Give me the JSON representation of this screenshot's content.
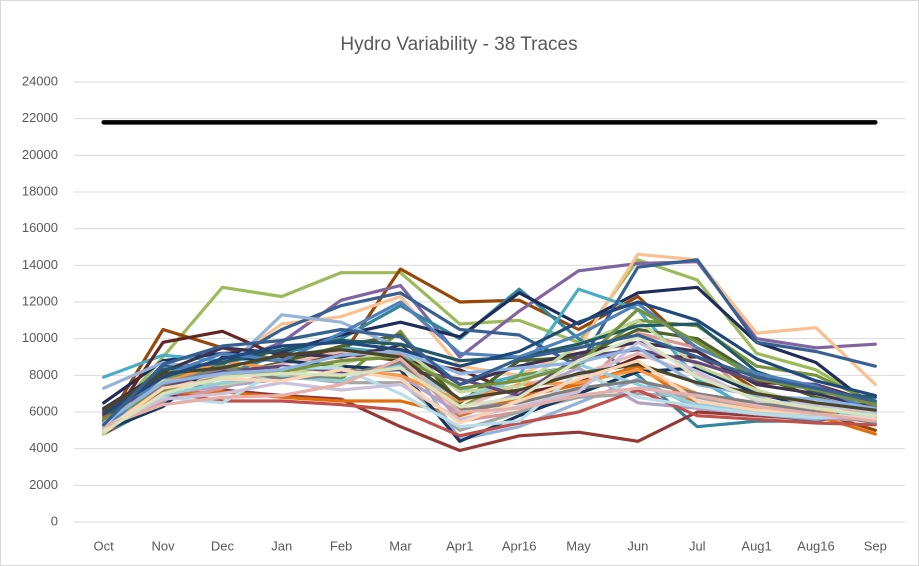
{
  "chart_data": {
    "type": "line",
    "title": "Hydro Variability - 38 Traces",
    "categories": [
      "Oct",
      "Nov",
      "Dec",
      "Jan",
      "Feb",
      "Mar",
      "Apr1",
      "Apr16",
      "May",
      "Jun",
      "Jul",
      "Aug1",
      "Aug16",
      "Sep"
    ],
    "ylim": [
      0,
      24000
    ],
    "yticks": [
      0,
      2000,
      4000,
      6000,
      8000,
      10000,
      12000,
      14000,
      16000,
      18000,
      20000,
      22000,
      24000
    ],
    "grid": true,
    "series": [
      {
        "color": "#9bbb59",
        "values": [
          5200,
          9000,
          12800,
          12300,
          13600,
          13600,
          10800,
          11000,
          9800,
          14300,
          13200,
          9200,
          8300,
          6400
        ]
      },
      {
        "color": "#974706",
        "values": [
          5200,
          10500,
          9500,
          8800,
          9000,
          13800,
          12000,
          12100,
          10500,
          12300,
          9300,
          7200,
          6000,
          5000
        ]
      },
      {
        "color": "#8064a2",
        "values": [
          5500,
          8000,
          8500,
          9800,
          12100,
          12900,
          9000,
          11500,
          13700,
          14100,
          14200,
          10000,
          9500,
          9700
        ]
      },
      {
        "color": "#fac090",
        "values": [
          5000,
          7500,
          8500,
          10800,
          11200,
          12300,
          8500,
          8000,
          9500,
          14600,
          14300,
          10300,
          10600,
          7500
        ]
      },
      {
        "color": "#31859c",
        "values": [
          4800,
          6500,
          8000,
          9200,
          10000,
          11800,
          10000,
          12700,
          10000,
          8000,
          5200,
          5500,
          5500,
          6200
        ]
      },
      {
        "color": "#1f2d5a",
        "values": [
          6500,
          8800,
          9200,
          9300,
          10200,
          10900,
          10100,
          12500,
          10800,
          12500,
          12800,
          9800,
          8700,
          6200
        ]
      },
      {
        "color": "#4bacc6",
        "values": [
          7900,
          9100,
          8800,
          9000,
          9500,
          9200,
          7200,
          8000,
          12700,
          11600,
          7800,
          6000,
          5800,
          6000
        ]
      },
      {
        "color": "#953735",
        "values": [
          4800,
          6800,
          7200,
          6900,
          6700,
          5200,
          3900,
          4700,
          4900,
          4400,
          6000,
          5800,
          5600,
          5700
        ]
      },
      {
        "color": "#376092",
        "values": [
          5300,
          8500,
          8600,
          10500,
          11800,
          12500,
          10500,
          10200,
          8500,
          13900,
          14300,
          9800,
          9300,
          8500
        ]
      },
      {
        "color": "#632523",
        "values": [
          5000,
          9800,
          10400,
          9000,
          9200,
          8800,
          8300,
          7000,
          7600,
          9000,
          9000,
          7600,
          7500,
          6500
        ]
      },
      {
        "color": "#77933c",
        "values": [
          5500,
          7800,
          8500,
          8100,
          7800,
          10400,
          6200,
          8000,
          8500,
          11000,
          10700,
          8500,
          8000,
          6500
        ]
      },
      {
        "color": "#4f6228",
        "values": [
          5800,
          7200,
          8000,
          8700,
          9600,
          10200,
          6500,
          8800,
          9000,
          10500,
          10000,
          8000,
          6800,
          6000
        ]
      },
      {
        "color": "#e46c0a",
        "values": [
          5200,
          7000,
          7100,
          6800,
          6600,
          6600,
          5800,
          6800,
          7500,
          8500,
          6400,
          6000,
          5800,
          4800
        ]
      },
      {
        "color": "#95b3d7",
        "values": [
          7300,
          8700,
          8200,
          11300,
          10900,
          9500,
          4500,
          5200,
          6500,
          7800,
          6200,
          5900,
          5600,
          5900
        ]
      },
      {
        "color": "#d99694",
        "values": [
          4900,
          6600,
          7300,
          8300,
          8800,
          9200,
          5500,
          6000,
          7200,
          10300,
          9500,
          6500,
          6200,
          5700
        ]
      },
      {
        "color": "#e6b9b8",
        "values": [
          5100,
          7300,
          8000,
          8600,
          9300,
          9000,
          6200,
          7500,
          8000,
          9200,
          8000,
          6800,
          6000,
          5800
        ]
      },
      {
        "color": "#a5a5a5",
        "values": [
          5400,
          7700,
          8300,
          8000,
          7600,
          7600,
          5000,
          6000,
          6800,
          7000,
          6800,
          6200,
          6000,
          5600
        ]
      },
      {
        "color": "#17375e",
        "values": [
          5000,
          6300,
          9000,
          8800,
          8500,
          8300,
          4400,
          5800,
          7000,
          8200,
          8400,
          7000,
          6300,
          5500
        ]
      },
      {
        "color": "#b3a2c7",
        "values": [
          4900,
          7000,
          7400,
          7800,
          8200,
          8000,
          5900,
          7000,
          8400,
          6500,
          6200,
          5900,
          5700,
          5500
        ]
      },
      {
        "color": "#f79646",
        "values": [
          5300,
          7500,
          8800,
          8300,
          8300,
          8000,
          6600,
          7500,
          7600,
          8300,
          7000,
          6200,
          6000,
          6100
        ]
      },
      {
        "color": "#3f3151",
        "values": [
          6200,
          8200,
          9500,
          9200,
          9000,
          9600,
          7500,
          8500,
          9200,
          9800,
          9300,
          7500,
          7000,
          6200
        ]
      },
      {
        "color": "#c0504d",
        "values": [
          5700,
          7100,
          6600,
          6600,
          6400,
          6100,
          4700,
          5400,
          6000,
          7200,
          5800,
          5600,
          5400,
          5300
        ]
      },
      {
        "color": "#c3d69b",
        "values": [
          4800,
          7700,
          7500,
          8000,
          8600,
          9500,
          7100,
          7400,
          9700,
          11000,
          8500,
          7200,
          6300,
          5600
        ]
      },
      {
        "color": "#215968",
        "values": [
          5500,
          8300,
          8700,
          9400,
          9900,
          9700,
          8800,
          9000,
          9700,
          10700,
          10800,
          8200,
          7100,
          6800
        ]
      },
      {
        "color": "#92cddc",
        "values": [
          5100,
          6900,
          7600,
          7900,
          7700,
          8600,
          6700,
          7800,
          8600,
          7500,
          6400,
          6000,
          5800,
          5900
        ]
      },
      {
        "color": "#604a7b",
        "values": [
          6000,
          7400,
          8200,
          8500,
          8200,
          8300,
          7800,
          6900,
          9000,
          9400,
          8700,
          7700,
          7500,
          6300
        ]
      },
      {
        "color": "#b7dee8",
        "values": [
          5300,
          6800,
          6500,
          8400,
          8400,
          7000,
          5200,
          5500,
          8200,
          6800,
          6300,
          5900,
          5700,
          5800
        ]
      },
      {
        "color": "#4f81bd",
        "values": [
          5000,
          8000,
          9200,
          8800,
          10300,
          12000,
          9200,
          9000,
          10200,
          11900,
          9500,
          8100,
          7400,
          6000
        ]
      },
      {
        "color": "#7f7f7f",
        "values": [
          4900,
          7500,
          8400,
          7800,
          8000,
          8700,
          6100,
          6500,
          7300,
          7700,
          7000,
          6500,
          6000,
          5400
        ]
      },
      {
        "color": "#76923c",
        "values": [
          5600,
          7200,
          7900,
          8200,
          8800,
          9000,
          7300,
          7700,
          8600,
          11600,
          9800,
          7800,
          7200,
          6400
        ]
      },
      {
        "color": "#ccc1da",
        "values": [
          5200,
          6700,
          7000,
          7600,
          7200,
          7500,
          5600,
          6300,
          7100,
          9800,
          8200,
          6600,
          6400,
          6000
        ]
      },
      {
        "color": "#8eb4e3",
        "values": [
          5400,
          7600,
          8100,
          8300,
          9100,
          9300,
          8100,
          8400,
          8700,
          9500,
          7500,
          6900,
          6700,
          6200
        ]
      },
      {
        "color": "#4a452a",
        "values": [
          6100,
          8100,
          8400,
          9100,
          9400,
          9000,
          6700,
          7200,
          8100,
          8600,
          7600,
          7000,
          6500,
          6100
        ]
      },
      {
        "color": "#fcd5b5",
        "values": [
          5000,
          7300,
          7800,
          7700,
          8300,
          7800,
          5400,
          6600,
          7800,
          8800,
          6600,
          6100,
          5900,
          5600
        ]
      },
      {
        "color": "#e6b0aa",
        "values": [
          5200,
          6400,
          6800,
          6900,
          7500,
          8900,
          6000,
          6200,
          6900,
          7300,
          6900,
          6300,
          5900,
          5500
        ]
      },
      {
        "color": "#1f497d",
        "values": [
          5900,
          7900,
          8900,
          9600,
          9800,
          9400,
          8500,
          9300,
          10900,
          12000,
          11000,
          8900,
          7700,
          6900
        ]
      },
      {
        "color": "#d7e4bd",
        "values": [
          4900,
          7000,
          7900,
          8100,
          8000,
          8400,
          6300,
          6800,
          8800,
          10100,
          7900,
          6700,
          6200,
          5800
        ]
      },
      {
        "color": "#366092",
        "values": [
          5300,
          8600,
          9600,
          9900,
          10500,
          10100,
          7500,
          8900,
          9500,
          10200,
          9000,
          7900,
          7300,
          6600
        ]
      },
      {
        "color": "#000000",
        "values": [
          21800,
          21800,
          21800,
          21800,
          21800,
          21800,
          21800,
          21800,
          21800,
          21800,
          21800,
          21800,
          21800,
          21800
        ]
      }
    ]
  }
}
